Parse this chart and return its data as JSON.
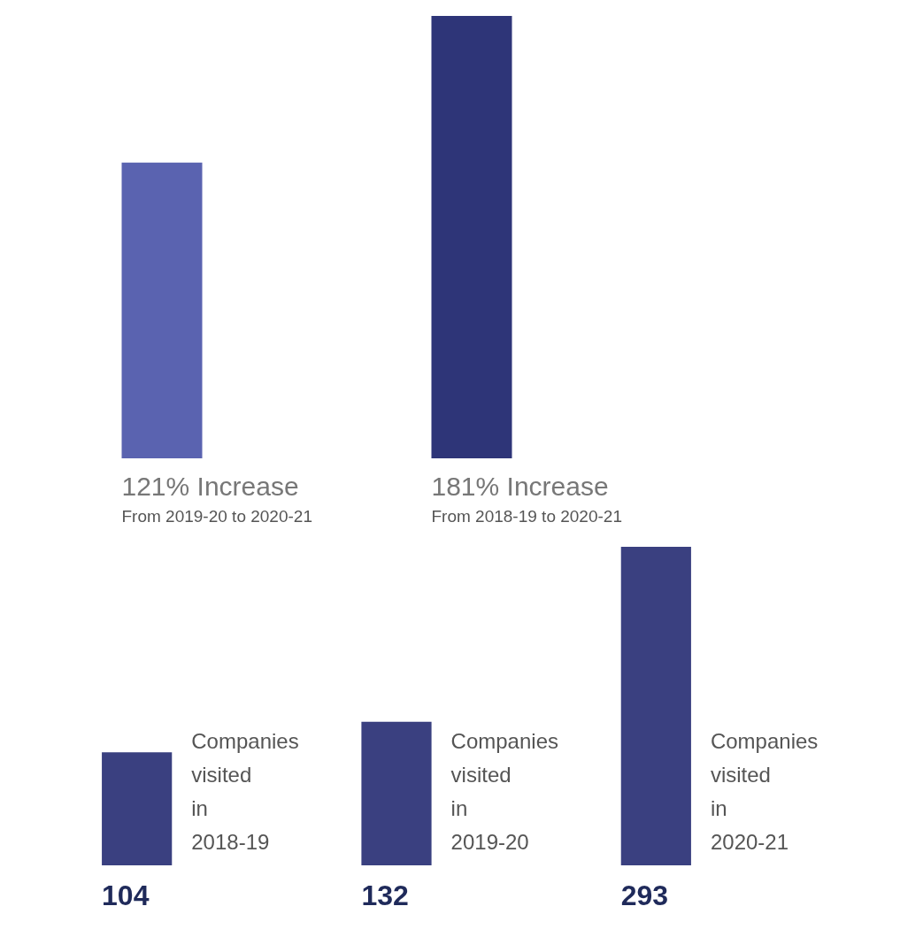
{
  "chart_data": [
    {
      "type": "bar",
      "categories": [
        "From 2019-20 to 2020-21",
        "From 2018-19 to 2020-21"
      ],
      "values": [
        121,
        181
      ],
      "value_labels": [
        "121% Increase",
        "181% Increase"
      ],
      "colors": [
        "#5a63b0",
        "#2e3578"
      ]
    },
    {
      "type": "bar",
      "categories": [
        "Companies visited in 2018-19",
        "Companies visited in 2019-20",
        "Companies visited in 2020-21"
      ],
      "values": [
        104,
        132,
        293
      ],
      "data_labels": true,
      "color": "#3a4080"
    }
  ]
}
